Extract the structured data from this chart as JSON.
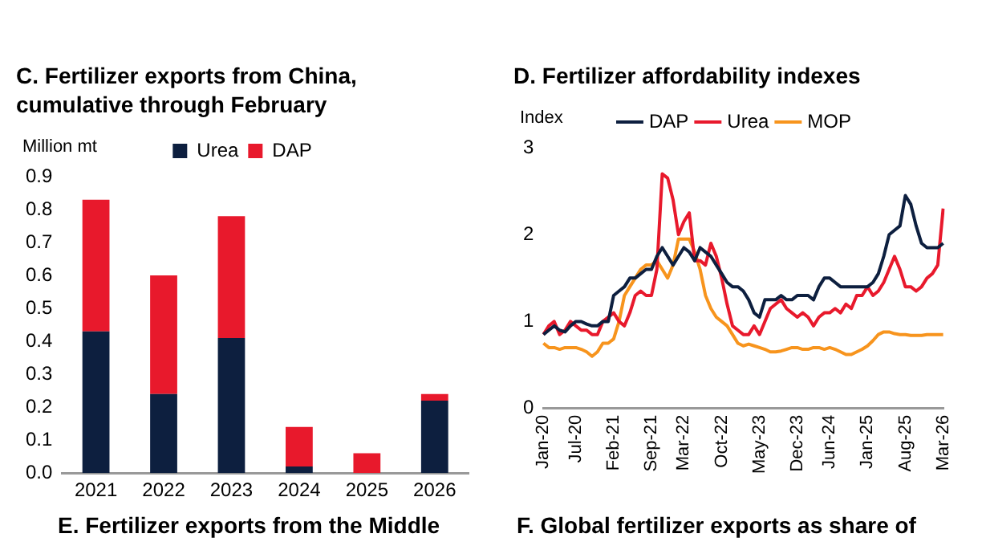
{
  "chart_data": [
    {
      "type": "bar",
      "title": "C. Fertilizer exports from China, cumulative through February",
      "ylabel": "Million mt",
      "categories": [
        "2021",
        "2022",
        "2023",
        "2024",
        "2025",
        "2026"
      ],
      "stacked": true,
      "legend": "top",
      "grid": false,
      "series": [
        {
          "name": "Urea",
          "color": "#0d1f3f",
          "values": [
            0.43,
            0.24,
            0.41,
            0.02,
            0.0,
            0.22
          ]
        },
        {
          "name": "DAP",
          "color": "#e8192c",
          "values": [
            0.4,
            0.36,
            0.37,
            0.12,
            0.06,
            0.02
          ]
        }
      ],
      "ylim": [
        0,
        0.9
      ],
      "yticks": [
        {
          "value": 0,
          "label": "0.0"
        },
        0.1,
        0.2,
        0.3,
        0.4,
        0.5,
        0.6,
        0.7,
        0.8,
        0.9
      ]
    },
    {
      "type": "line",
      "title": "D. Fertilizer affordability indexes",
      "ylabel": "Index",
      "legend": "top",
      "grid": false,
      "categories": [
        "Jan-20",
        null,
        null,
        null,
        null,
        null,
        "Jul-20",
        null,
        null,
        null,
        null,
        null,
        null,
        "Feb-21",
        null,
        null,
        null,
        null,
        null,
        null,
        "Sep-21",
        null,
        null,
        null,
        null,
        null,
        "Mar-22",
        null,
        null,
        null,
        null,
        null,
        null,
        "Oct-22",
        null,
        null,
        null,
        null,
        null,
        null,
        "May-23",
        null,
        null,
        null,
        null,
        null,
        null,
        "Dec-23",
        null,
        null,
        null,
        null,
        null,
        "Jun-24",
        null,
        null,
        null,
        null,
        null,
        null,
        "Jan-25",
        null,
        null,
        null,
        null,
        null,
        null,
        "Aug-25",
        null,
        null,
        null,
        null,
        null,
        null,
        "Mar-26"
      ],
      "series": [
        {
          "name": "DAP",
          "color": "#0d1f3f",
          "values": [
            0.85,
            0.9,
            0.95,
            0.9,
            0.88,
            0.95,
            1.0,
            1.0,
            0.97,
            0.95,
            0.95,
            1.0,
            1.0,
            1.3,
            1.35,
            1.4,
            1.5,
            1.5,
            1.55,
            1.6,
            1.6,
            1.75,
            1.85,
            1.75,
            1.65,
            1.75,
            1.85,
            1.8,
            1.7,
            1.85,
            1.8,
            1.75,
            1.65,
            1.55,
            1.45,
            1.4,
            1.4,
            1.35,
            1.25,
            1.1,
            1.05,
            1.25,
            1.25,
            1.25,
            1.3,
            1.25,
            1.25,
            1.3,
            1.3,
            1.3,
            1.25,
            1.4,
            1.5,
            1.5,
            1.45,
            1.4,
            1.4,
            1.4,
            1.4,
            1.4,
            1.4,
            1.45,
            1.55,
            1.75,
            2.0,
            2.05,
            2.1,
            2.45,
            2.35,
            2.1,
            1.9,
            1.85,
            1.85,
            1.85,
            1.9
          ]
        },
        {
          "name": "Urea",
          "color": "#e8192c",
          "values": [
            0.85,
            0.95,
            1.0,
            0.85,
            0.9,
            1.0,
            0.95,
            0.9,
            0.9,
            0.85,
            0.85,
            1.0,
            1.05,
            1.1,
            1.0,
            0.95,
            1.1,
            1.3,
            1.35,
            1.3,
            1.3,
            1.6,
            2.7,
            2.65,
            2.4,
            2.0,
            2.15,
            2.25,
            1.7,
            1.7,
            1.65,
            1.9,
            1.75,
            1.5,
            1.2,
            0.95,
            0.9,
            0.85,
            0.85,
            0.95,
            0.85,
            1.0,
            1.15,
            1.2,
            1.25,
            1.15,
            1.1,
            1.05,
            1.1,
            1.05,
            0.95,
            1.05,
            1.1,
            1.1,
            1.15,
            1.1,
            1.2,
            1.15,
            1.3,
            1.3,
            1.4,
            1.3,
            1.35,
            1.45,
            1.6,
            1.75,
            1.6,
            1.4,
            1.4,
            1.35,
            1.4,
            1.5,
            1.55,
            1.65,
            2.3
          ]
        },
        {
          "name": "MOP",
          "color": "#f7941d",
          "values": [
            0.75,
            0.7,
            0.7,
            0.68,
            0.7,
            0.7,
            0.7,
            0.68,
            0.65,
            0.6,
            0.65,
            0.75,
            0.75,
            0.8,
            1.0,
            1.3,
            1.4,
            1.5,
            1.6,
            1.65,
            1.65,
            1.7,
            1.6,
            1.5,
            1.65,
            1.95,
            1.95,
            1.95,
            1.8,
            1.6,
            1.3,
            1.15,
            1.05,
            1.0,
            0.95,
            0.85,
            0.75,
            0.72,
            0.74,
            0.72,
            0.7,
            0.68,
            0.65,
            0.65,
            0.66,
            0.68,
            0.7,
            0.7,
            0.68,
            0.68,
            0.7,
            0.7,
            0.68,
            0.7,
            0.68,
            0.65,
            0.62,
            0.62,
            0.65,
            0.68,
            0.72,
            0.78,
            0.85,
            0.88,
            0.88,
            0.86,
            0.85,
            0.85,
            0.84,
            0.84,
            0.84,
            0.85,
            0.85,
            0.85,
            0.85
          ]
        }
      ],
      "ylim": [
        0,
        3
      ],
      "yticks": [
        0,
        1,
        2,
        3
      ]
    },
    {
      "type": "other",
      "title": "E. Fertilizer exports from the Middle"
    },
    {
      "type": "other",
      "title": "F. Global fertilizer exports as share of"
    }
  ]
}
